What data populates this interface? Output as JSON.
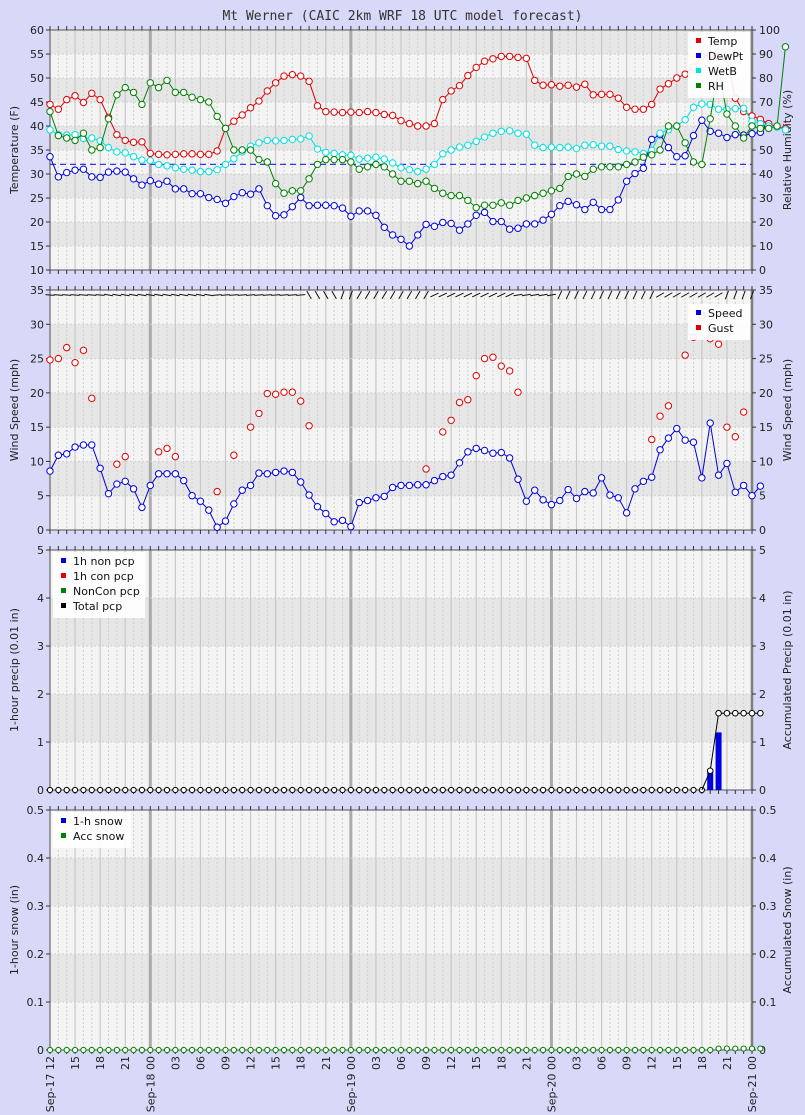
{
  "title": "Mt Werner (CAIC 2km WRF 18 UTC model forecast)",
  "colors": {
    "page_bg": "#d8d8f8",
    "plot_bg": "#f4f4f4",
    "band_bg": "#e6e6e6",
    "temp": "#e00000",
    "dewpt": "#0000e0",
    "wetb": "#00e0e0",
    "rh": "#008000",
    "freezing_line": "#3333ff",
    "speed": "#0000e0",
    "gust": "#e00000",
    "precip_bar": "#0000e0",
    "total_pcp": "#000000",
    "snow": "#0000e0",
    "acc_snow": "#008000"
  },
  "x_ticks": [
    "Sep-17 12",
    "15",
    "18",
    "21",
    "Sep-18 00",
    "03",
    "06",
    "09",
    "12",
    "15",
    "18",
    "21",
    "Sep-19 00",
    "03",
    "06",
    "09",
    "12",
    "15",
    "18",
    "21",
    "Sep-20 00",
    "03",
    "06",
    "09",
    "12",
    "15",
    "18",
    "21",
    "Sep-21 00"
  ],
  "chart_data": [
    {
      "type": "line",
      "panel": "temperature",
      "ylabel": "Temperature (F)",
      "y2label": "Relative Humidity (%)",
      "ylim": [
        10,
        60
      ],
      "y2lim": [
        0,
        100
      ],
      "yticks": [
        10,
        15,
        20,
        25,
        30,
        35,
        40,
        45,
        50,
        55,
        60
      ],
      "y2ticks": [
        0,
        10,
        20,
        30,
        40,
        50,
        60,
        70,
        80,
        90,
        100
      ],
      "legend": [
        "Temp",
        "DewPt",
        "WetB",
        "RH"
      ],
      "legend_position": "top-right",
      "freezing_line": 32,
      "series": [
        {
          "name": "Temp",
          "axis": "left",
          "values": [
            44.5,
            43.5,
            45.5,
            46.3,
            44.9,
            46.8,
            45.5,
            41.8,
            38.2,
            37,
            36.6,
            36.7,
            34.3,
            34.1,
            34,
            34.1,
            34.2,
            34.2,
            34.1,
            34.1,
            34.8,
            39.5,
            41,
            42.3,
            43.8,
            45.2,
            47.3,
            49,
            50.4,
            50.7,
            50.4,
            49.3,
            44.2,
            43,
            42.9,
            42.8,
            42.9,
            42.8,
            43,
            42.8,
            42.4,
            42.2,
            41.1,
            40.5,
            40,
            40,
            40.5,
            45.5,
            47.3,
            48.4,
            50.5,
            52.2,
            53.5,
            54,
            54.5,
            54.5,
            54.3,
            54.1,
            49.5,
            48.5,
            48.6,
            48.3,
            48.5,
            48.1,
            48.7,
            46.5,
            46.6,
            46.6,
            45.8,
            43.9,
            43.5,
            43.5,
            44.5,
            47.7,
            48.8,
            50,
            50.8,
            52.3,
            54.6,
            54.8,
            54.6,
            54,
            45.8,
            43,
            42.1,
            41.4,
            40.5,
            39.8,
            39.5
          ]
        },
        {
          "name": "DewPt",
          "axis": "left",
          "values": [
            33.6,
            29.4,
            30.3,
            30.8,
            31,
            29.4,
            29.3,
            30.4,
            30.6,
            30.4,
            29,
            27.7,
            28.6,
            27.9,
            28.5,
            26.9,
            26.9,
            25.9,
            25.9,
            25.1,
            24.7,
            23.9,
            25.3,
            26.1,
            25.8,
            26.9,
            23.4,
            21.3,
            21.5,
            23.2,
            25.1,
            23.4,
            23.5,
            23.5,
            23.4,
            22.9,
            21.2,
            22.3,
            22.3,
            21.4,
            18.9,
            17.3,
            16.4,
            15,
            17.3,
            19.5,
            19.1,
            19.9,
            19.7,
            18.3,
            19.6,
            21.4,
            22,
            20.1,
            20.1,
            18.5,
            18.7,
            19.6,
            19.6,
            20.4,
            21.6,
            23.4,
            24.3,
            23.6,
            22.6,
            24.1,
            22.6,
            22.6,
            24.6,
            28.5,
            30.1,
            31.2,
            37.2,
            38.2,
            35.5,
            33.6,
            33.8,
            38,
            41.2,
            38.9,
            38.5,
            37.6,
            38.2,
            38.1,
            38.4,
            38.7
          ]
        },
        {
          "name": "WetB",
          "axis": "left",
          "values": [
            39.2,
            38.2,
            38.1,
            38.2,
            37.4,
            37.5,
            36.9,
            35.5,
            34.6,
            34.4,
            33.6,
            32.9,
            32.8,
            32,
            31.7,
            31.3,
            31,
            30.8,
            30.5,
            30.5,
            30.9,
            32,
            33.2,
            34.6,
            35.8,
            36.5,
            37,
            36.9,
            37,
            37.2,
            37.3,
            37.9,
            35.2,
            34.5,
            34.3,
            34,
            33.9,
            33.1,
            33.3,
            33.5,
            33.1,
            32.3,
            31.3,
            30.9,
            30.5,
            31,
            32,
            34.2,
            35,
            35.6,
            36,
            36.8,
            37.7,
            38.5,
            38.9,
            39,
            38.5,
            38.3,
            36,
            35.5,
            35.6,
            35.5,
            35.6,
            35.3,
            36,
            36.1,
            35.8,
            35.8,
            35.1,
            34.8,
            34.6,
            34.3,
            34.9,
            38.5,
            39.2,
            40,
            41.3,
            43.9,
            44.6,
            44.5,
            43.5,
            43.5,
            43.6,
            43.7,
            41,
            40.5,
            40,
            39.8,
            39.2
          ]
        },
        {
          "name": "RH",
          "axis": "right",
          "values": [
            66,
            56,
            55,
            54,
            57,
            50,
            51,
            63,
            73,
            76,
            74,
            69,
            78,
            76,
            79,
            74,
            74,
            72,
            71,
            70,
            64,
            59,
            50,
            50,
            50,
            46,
            45,
            36,
            32,
            33,
            33,
            38,
            44,
            46,
            46,
            46,
            45,
            42,
            43,
            44,
            43,
            40,
            37,
            37,
            36,
            37,
            34,
            32,
            31,
            31,
            29,
            26,
            27,
            27,
            28,
            27,
            29,
            30,
            31,
            32,
            33,
            34,
            39,
            40,
            39,
            42,
            43,
            43,
            43,
            44,
            45,
            47,
            48,
            50,
            60,
            60,
            53,
            45,
            44,
            63,
            84,
            65,
            60,
            55,
            60,
            59,
            59,
            60,
            93
          ]
        }
      ]
    },
    {
      "type": "scatter",
      "panel": "wind",
      "ylabel": "Wind Speed (mph)",
      "y2label": "Wind Speed (mph)",
      "ylim": [
        0,
        35
      ],
      "yticks": [
        0,
        5,
        10,
        15,
        20,
        25,
        30,
        35
      ],
      "legend": [
        "Speed",
        "Gust"
      ],
      "legend_position": "top-right",
      "series": [
        {
          "name": "Speed",
          "style": "line",
          "values": [
            8.6,
            10.9,
            11.1,
            12.1,
            12.4,
            12.4,
            9,
            5.3,
            6.7,
            7.1,
            6,
            3.3,
            6.5,
            8.2,
            8.2,
            8.2,
            7.2,
            5,
            4.2,
            2.9,
            0.4,
            1.3,
            3.8,
            5.8,
            6.5,
            8.3,
            8.2,
            8.4,
            8.6,
            8.4,
            7,
            5.1,
            3.4,
            2.4,
            1.2,
            1.4,
            0.5,
            4,
            4.3,
            4.7,
            4.9,
            6.2,
            6.5,
            6.5,
            6.6,
            6.6,
            7.2,
            7.8,
            8,
            9.8,
            11.4,
            11.9,
            11.6,
            11.2,
            11.3,
            10.5,
            7.4,
            4.2,
            5.8,
            4.4,
            3.7,
            4.3,
            5.9,
            4.6,
            5.6,
            5.4,
            7.6,
            5.1,
            4.7,
            2.5,
            6,
            7.1,
            7.7,
            11.7,
            13.4,
            14.8,
            13.1,
            12.8,
            7.6,
            15.6,
            8,
            9.7,
            5.5,
            6.5,
            5,
            6.4
          ]
        },
        {
          "name": "Gust",
          "style": "points",
          "points": [
            [
              0,
              24.8
            ],
            [
              1,
              25
            ],
            [
              2,
              26.6
            ],
            [
              3,
              24.4
            ],
            [
              4,
              26.2
            ],
            [
              5,
              19.2
            ],
            [
              8,
              9.6
            ],
            [
              9,
              10.7
            ],
            [
              13,
              11.4
            ],
            [
              14,
              11.9
            ],
            [
              15,
              10.7
            ],
            [
              20,
              5.6
            ],
            [
              22,
              10.9
            ],
            [
              24,
              15
            ],
            [
              25,
              17
            ],
            [
              26,
              19.9
            ],
            [
              27,
              19.8
            ],
            [
              28,
              20.1
            ],
            [
              29,
              20.1
            ],
            [
              30,
              18.8
            ],
            [
              31,
              15.2
            ],
            [
              45,
              8.9
            ],
            [
              47,
              14.3
            ],
            [
              48,
              16
            ],
            [
              49,
              18.6
            ],
            [
              50,
              19
            ],
            [
              51,
              22.5
            ],
            [
              52,
              25
            ],
            [
              53,
              25.2
            ],
            [
              54,
              23.9
            ],
            [
              55,
              23.2
            ],
            [
              56,
              20.1
            ],
            [
              72,
              13.2
            ],
            [
              73,
              16.6
            ],
            [
              74,
              18.1
            ],
            [
              76,
              25.5
            ],
            [
              77,
              28.1
            ],
            [
              78,
              31.3
            ],
            [
              79,
              27.9
            ],
            [
              80,
              27.1
            ],
            [
              81,
              15
            ],
            [
              82,
              13.6
            ],
            [
              83,
              17.2
            ]
          ]
        }
      ],
      "direction_arrows": true
    },
    {
      "type": "bar",
      "panel": "precip",
      "ylabel": "1-hour precip (0.01 in)",
      "y2label": "Accumulated Precip (0.01 in)",
      "ylim": [
        0,
        5
      ],
      "yticks": [
        0,
        1,
        2,
        3,
        4,
        5
      ],
      "legend": [
        "1h non pcp",
        "1h con pcp",
        "NonCon pcp",
        "Total pcp"
      ],
      "legend_position": "top-left",
      "bars_1h": [
        [
          79,
          0.4
        ],
        [
          80,
          1.2
        ]
      ],
      "total_pcp_steps": [
        [
          79,
          0.4
        ],
        [
          80,
          1.6
        ],
        [
          81,
          1.6
        ],
        [
          82,
          1.6
        ],
        [
          83,
          1.6
        ],
        [
          84,
          1.6
        ],
        [
          85,
          1.6
        ]
      ]
    },
    {
      "type": "line",
      "panel": "snow",
      "ylabel": "1-hour snow (in)",
      "y2label": "Accumulated Snow (in)",
      "ylim": [
        0,
        0.5
      ],
      "yticks": [
        0,
        0.1,
        0.2,
        0.3,
        0.4,
        0.5
      ],
      "legend": [
        "1-h snow",
        "Acc snow"
      ],
      "legend_position": "top-left",
      "acc_snow_steps": [
        [
          80,
          0.003
        ],
        [
          81,
          0.003
        ],
        [
          82,
          0.003
        ],
        [
          83,
          0.003
        ],
        [
          84,
          0.003
        ],
        [
          85,
          0.003
        ]
      ]
    }
  ]
}
